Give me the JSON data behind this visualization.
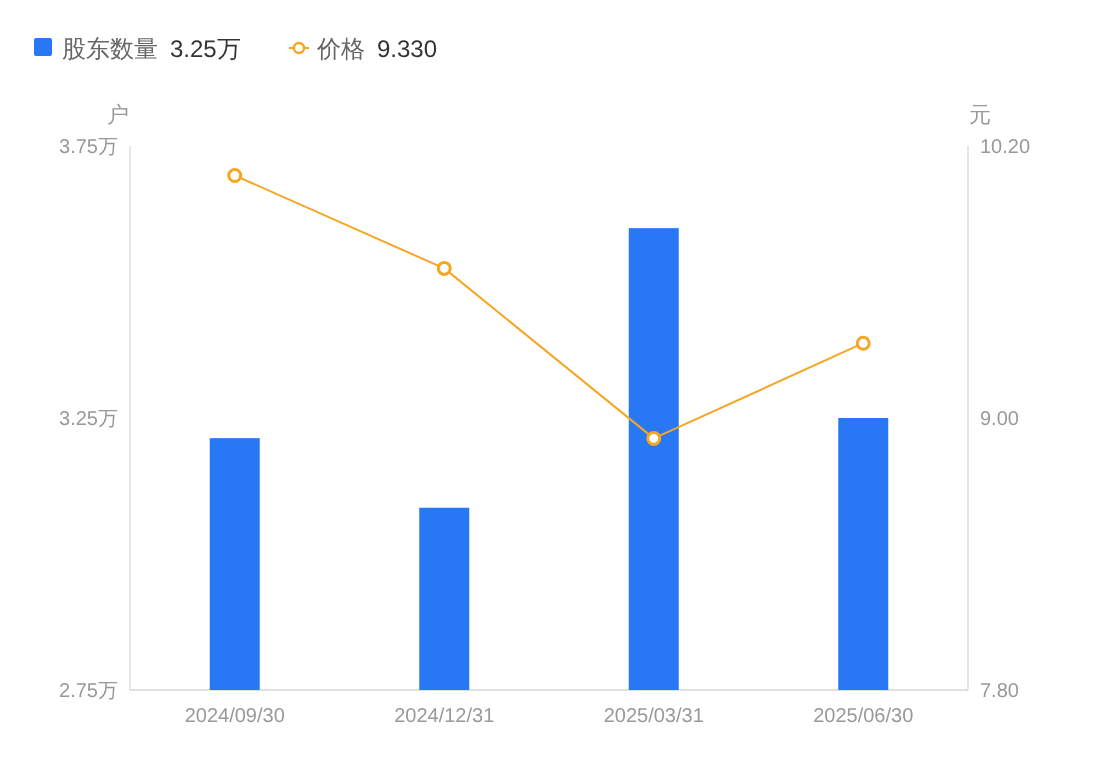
{
  "chart_data": {
    "type": "bar",
    "categories": [
      "2024/09/30",
      "2024/12/31",
      "2025/03/31",
      "2025/06/30"
    ],
    "series": [
      {
        "name": "股东数量",
        "color": "#2878f6",
        "values": [
          3.213,
          3.085,
          3.599,
          3.25
        ]
      },
      {
        "name": "价格",
        "type": "line",
        "axis": "y2",
        "color": "#f5a623",
        "marker": "circle",
        "values": [
          10.07,
          9.66,
          8.91,
          9.33
        ]
      }
    ],
    "annotations": [
      "3.25万",
      "9.330"
    ],
    "ylabel": "户",
    "y2label": "元",
    "ylim": [
      2.75,
      3.75
    ],
    "yticks": [
      {
        "value": 2.75,
        "label": "2.75万"
      },
      {
        "value": 3.25,
        "label": "3.25万"
      },
      {
        "value": 3.75,
        "label": "3.75万"
      }
    ],
    "y2lim": [
      7.8,
      10.2
    ],
    "y2ticks": [
      {
        "value": 7.8,
        "label": "7.80"
      },
      {
        "value": 9.0,
        "label": "9.00"
      },
      {
        "value": 10.2,
        "label": "10.20"
      }
    ],
    "grid": false,
    "legend": "top left"
  }
}
